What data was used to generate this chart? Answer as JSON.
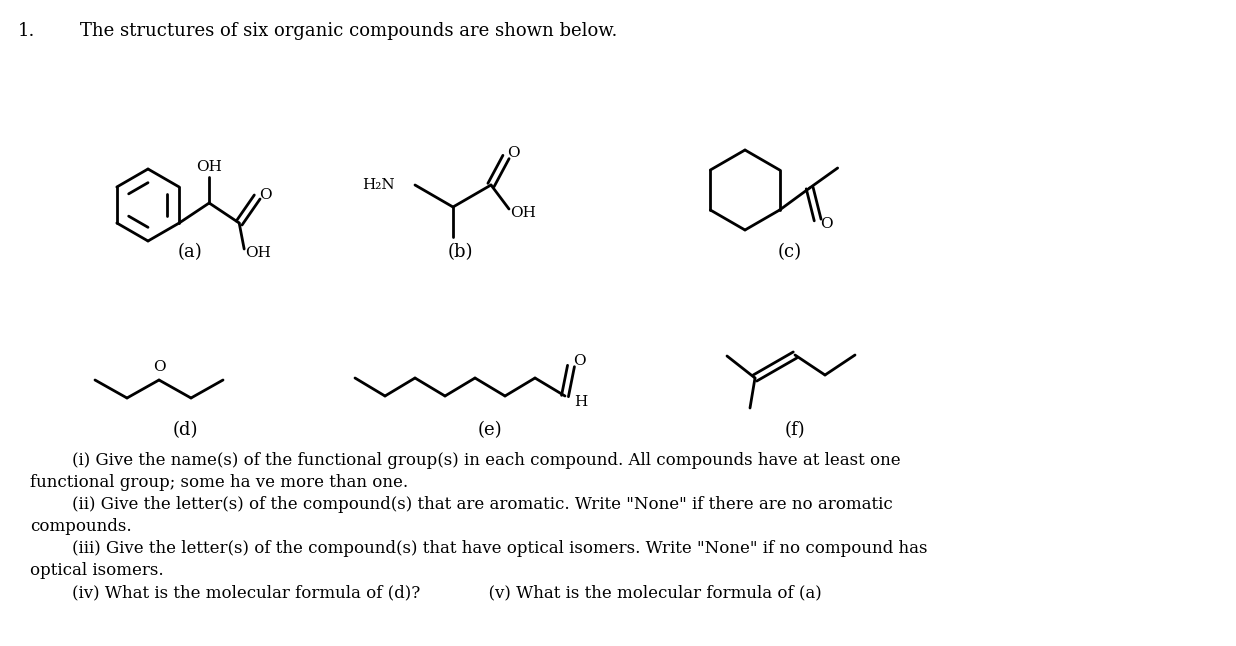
{
  "title_number": "1.",
  "title_text": "The structures of six organic compounds are shown below.",
  "labels": [
    "(a)",
    "(b)",
    "(c)",
    "(d)",
    "(e)",
    "(f)"
  ],
  "bg_color": "#ffffff",
  "line_color": "#000000",
  "font_size": 13,
  "lw": 2.0
}
